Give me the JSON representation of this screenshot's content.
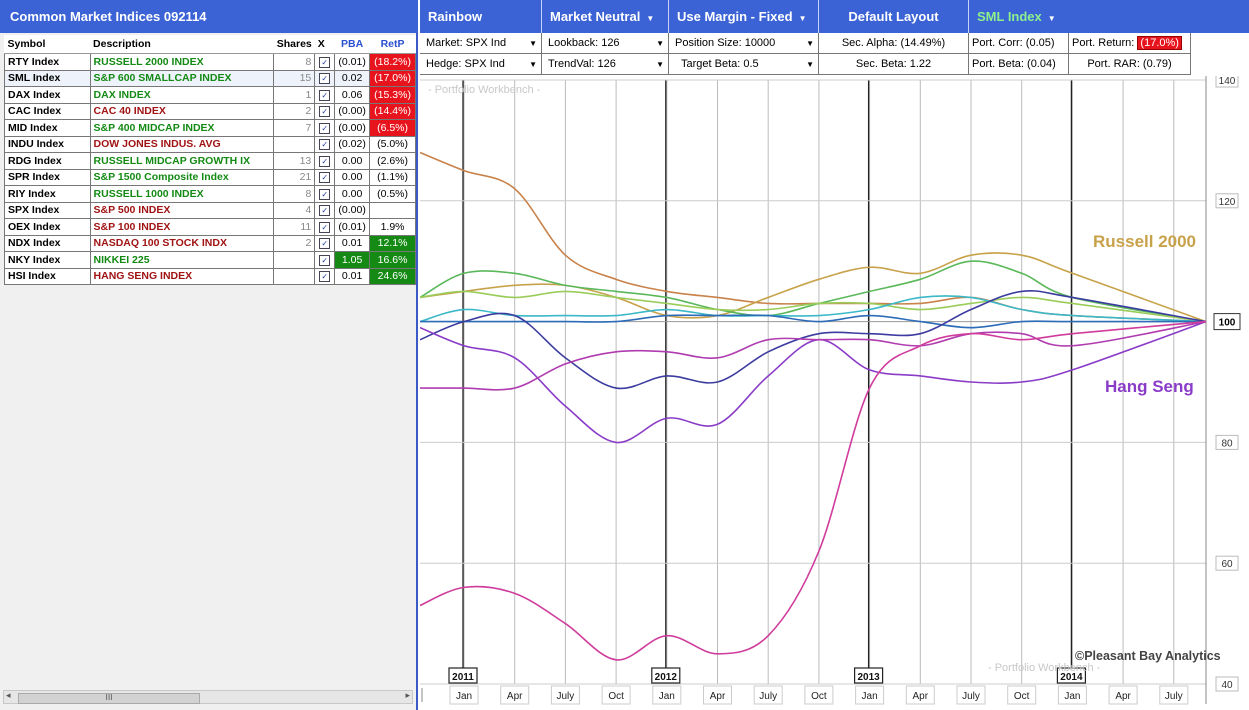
{
  "left_panel": {
    "title": "Common Market Indices 092114",
    "headers": {
      "symbol": "Symbol",
      "description": "Description",
      "shares": "Shares",
      "x": "X",
      "pba": "PBA",
      "retp": "RetP"
    },
    "rows": [
      {
        "symbol": "RTY Index",
        "description": "RUSSELL 2000 INDEX",
        "desc_color": "green",
        "shares": "8",
        "pba": "(0.01)",
        "retp": "(18.2%)",
        "ret_style": "red"
      },
      {
        "symbol": "SML Index",
        "description": "S&P 600 SMALLCAP INDEX",
        "desc_color": "green",
        "shares": "15",
        "pba": "0.02",
        "retp": "(17.0%)",
        "ret_style": "red"
      },
      {
        "symbol": "DAX Index",
        "description": "DAX INDEX",
        "desc_color": "green",
        "shares": "1",
        "pba": "0.06",
        "retp": "(15.3%)",
        "ret_style": "red"
      },
      {
        "symbol": "CAC Index",
        "description": "CAC 40 INDEX",
        "desc_color": "red",
        "shares": "2",
        "pba": "(0.00)",
        "retp": "(14.4%)",
        "ret_style": "red"
      },
      {
        "symbol": "MID Index",
        "description": "S&P 400 MIDCAP INDEX",
        "desc_color": "green",
        "shares": "7",
        "pba": "(0.00)",
        "retp": "(6.5%)",
        "ret_style": "red"
      },
      {
        "symbol": "INDU Index",
        "description": "DOW JONES INDUS. AVG",
        "desc_color": "red",
        "shares": "",
        "pba": "(0.02)",
        "retp": "(5.0%)",
        "ret_style": "plain"
      },
      {
        "symbol": "RDG Index",
        "description": "RUSSELL MIDCAP GROWTH IX",
        "desc_color": "green",
        "shares": "13",
        "pba": "0.00",
        "retp": "(2.6%)",
        "ret_style": "plain"
      },
      {
        "symbol": "SPR Index",
        "description": "S&P 1500 Composite Index",
        "desc_color": "green",
        "shares": "21",
        "pba": "0.00",
        "retp": "(1.1%)",
        "ret_style": "plain"
      },
      {
        "symbol": "RIY Index",
        "description": "RUSSELL 1000 INDEX",
        "desc_color": "green",
        "shares": "8",
        "pba": "0.00",
        "retp": "(0.5%)",
        "ret_style": "plain"
      },
      {
        "symbol": "SPX Index",
        "description": "S&P 500 INDEX",
        "desc_color": "red",
        "shares": "4",
        "pba": "(0.00)",
        "retp": "",
        "ret_style": "plain"
      },
      {
        "symbol": "OEX Index",
        "description": "S&P 100 INDEX",
        "desc_color": "red",
        "shares": "11",
        "pba": "(0.01)",
        "retp": "1.9%",
        "ret_style": "plain"
      },
      {
        "symbol": "NDX Index",
        "description": "NASDAQ 100 STOCK INDX",
        "desc_color": "red",
        "shares": "2",
        "pba": "0.01",
        "retp": "12.1%",
        "ret_style": "green"
      },
      {
        "symbol": "NKY Index",
        "description": "NIKKEI 225",
        "desc_color": "green",
        "shares": "",
        "pba": "1.05",
        "pba_style": "green",
        "retp": "16.6%",
        "ret_style": "green"
      },
      {
        "symbol": "HSI Index",
        "description": "HANG SENG INDEX",
        "desc_color": "red",
        "shares": "",
        "pba": "0.01",
        "retp": "24.6%",
        "ret_style": "green"
      }
    ],
    "scroll_thumb": "III"
  },
  "toolbar": {
    "rainbow": "Rainbow Chart",
    "neutral": "Market Neutral",
    "margin": "Use Margin - Fixed",
    "layout": "Default Layout",
    "index": "SML Index"
  },
  "params": {
    "market": "Market:  SPX Ind",
    "hedge": "Hedge:  SPX Ind",
    "lookback": "Lookback:  126",
    "trendval": "TrendVal:  126",
    "position_size": "Position Size:  10000",
    "target_beta": "Target Beta:  0.5",
    "sec_alpha": "Sec. Alpha:  (14.49%)",
    "sec_beta": "Sec. Beta:  1.22",
    "port_corr": "Port. Corr:  (0.05)",
    "port_beta": "Port. Beta:  (0.04)",
    "port_return_label": "Port. Return:",
    "port_return_value": "(17.0%)",
    "port_rar": "Port. RAR:  (0.79)"
  },
  "chart": {
    "watermark_top": "- Portfolio Workbench -",
    "watermark_bottom": "- Portfolio Workbench -",
    "copyright": "©Pleasant Bay Analytics",
    "label_russell": "Russell 2000",
    "label_hangseng": "Hang Seng",
    "label_russell_color": "#c8a24a",
    "label_hangseng_color": "#8a3cc8"
  },
  "chart_data": {
    "type": "line",
    "ylim": [
      40,
      140
    ],
    "y_ticks": [
      140,
      120,
      100,
      80,
      60,
      40
    ],
    "x_month_labels": [
      "Jan",
      "Apr",
      "July",
      "Oct",
      "Jan",
      "Apr",
      "July",
      "Oct",
      "Jan",
      "Apr",
      "July",
      "Oct",
      "Jan",
      "Apr",
      "July"
    ],
    "year_labels": [
      "2011",
      "2012",
      "2013",
      "2014"
    ],
    "series": [
      {
        "name": "",
        "color": "#c8824a",
        "values": [
          128,
          125,
          122,
          111,
          107,
          105,
          104,
          103,
          103,
          103,
          103,
          104,
          102,
          101,
          100
        ]
      },
      {
        "name": "Russell 2000",
        "color": "#c8a24a",
        "values": [
          104,
          105,
          106,
          106,
          104,
          101,
          101,
          104,
          107,
          109,
          108,
          111,
          111,
          108,
          100
        ]
      },
      {
        "name": "",
        "color": "#5ab85a",
        "values": [
          104,
          108,
          108,
          106,
          105,
          104,
          102,
          101,
          103,
          105,
          107,
          110,
          108,
          104,
          100
        ]
      },
      {
        "name": "",
        "color": "#9acc5a",
        "values": [
          104,
          105,
          104,
          105,
          104,
          103,
          102,
          102,
          103,
          103,
          102,
          103,
          104,
          103,
          100
        ]
      },
      {
        "name": "",
        "color": "#3cb8c8",
        "values": [
          100,
          102,
          101,
          101,
          101,
          102,
          101,
          101,
          101,
          102,
          104,
          104,
          102,
          101,
          100
        ]
      },
      {
        "name": "",
        "color": "#2c6cb8",
        "values": [
          100,
          100,
          100,
          100,
          100,
          101,
          101,
          101,
          100,
          101,
          100,
          99,
          100,
          100,
          100
        ]
      },
      {
        "name": "",
        "color": "#3c3ca0",
        "values": [
          97,
          100,
          101,
          94,
          89,
          91,
          90,
          95,
          98,
          98,
          98,
          102,
          105,
          104,
          100
        ]
      },
      {
        "name": "Hang Seng",
        "color": "#8a3cc8",
        "values": [
          99,
          96,
          94,
          86,
          80,
          84,
          83,
          91,
          97,
          92,
          91,
          90,
          90,
          92,
          100
        ]
      },
      {
        "name": "",
        "color": "#b03cb0",
        "values": [
          89,
          89,
          89,
          93,
          95,
          95,
          94,
          97,
          97,
          97,
          96,
          98,
          98,
          96,
          100
        ]
      },
      {
        "name": "",
        "color": "#d03c9c",
        "values": [
          53,
          56,
          55,
          50,
          44,
          48,
          45,
          48,
          62,
          89,
          96,
          98,
          97,
          98,
          100
        ]
      }
    ]
  }
}
